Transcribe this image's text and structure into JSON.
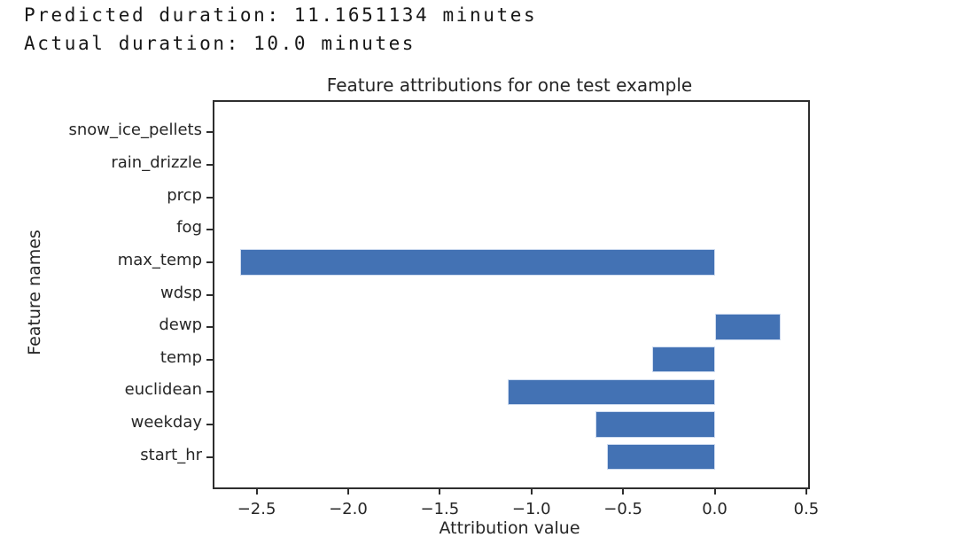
{
  "output_text": {
    "line1": "Predicted duration: 11.1651134 minutes",
    "line2": "Actual duration: 10.0 minutes"
  },
  "chart_data": {
    "type": "bar",
    "orientation": "horizontal",
    "title": "Feature attributions for one test example",
    "xlabel": "Attribution value",
    "ylabel": "Feature names",
    "categories": [
      "snow_ice_pellets",
      "rain_drizzle",
      "prcp",
      "fog",
      "max_temp",
      "wdsp",
      "dewp",
      "temp",
      "euclidean",
      "weekday",
      "start_hr"
    ],
    "values": [
      0,
      0,
      0,
      0,
      -2.59,
      0,
      0.36,
      -0.34,
      -1.13,
      -0.65,
      -0.59
    ],
    "xlim": [
      -2.73,
      0.51
    ],
    "xticks": [
      -2.5,
      -2.0,
      -1.5,
      -1.0,
      -0.5,
      0.0,
      0.5
    ],
    "xtick_labels": [
      "−2.5",
      "−2.0",
      "−1.5",
      "−1.0",
      "−0.5",
      "0.0",
      "0.5"
    ],
    "bar_height_frac": 0.8,
    "grid": false,
    "legend": null,
    "bar_color": "#4372b4",
    "bar_edge_color": "#cfdcf0",
    "spine_color": "#2e2e2e",
    "text_color": "#262626",
    "background_color": "#ffffff"
  }
}
